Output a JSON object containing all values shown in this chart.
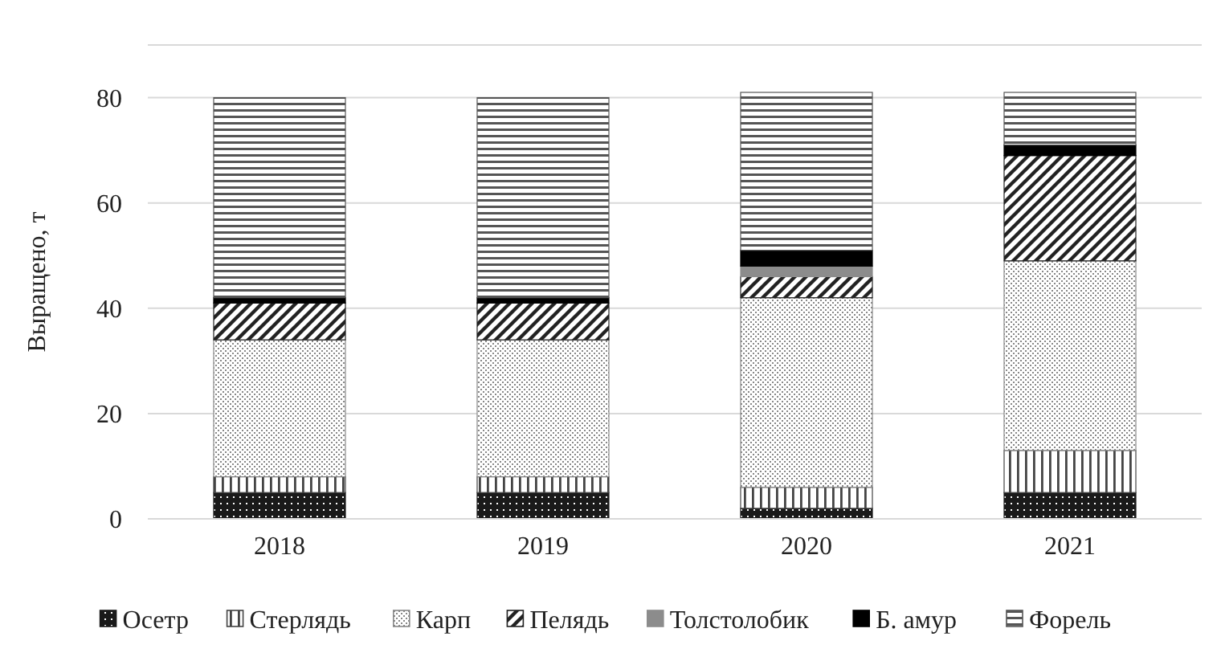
{
  "chart_data": {
    "type": "bar",
    "stacked": true,
    "ylabel": "Выращено, т",
    "categories": [
      "2018",
      "2019",
      "2020",
      "2021"
    ],
    "series": [
      {
        "name": "Осетр",
        "color": "#1a1a1a",
        "values": [
          5,
          5,
          2,
          5
        ]
      },
      {
        "name": "Стерлядь",
        "color": "#444444",
        "values": [
          3,
          3,
          4,
          8
        ]
      },
      {
        "name": "Карп",
        "color": "#888888",
        "values": [
          26,
          26,
          36,
          36
        ]
      },
      {
        "name": "Пелядь",
        "color": "#222222",
        "values": [
          7,
          7,
          4,
          20
        ]
      },
      {
        "name": "Толстолобик",
        "color": "#8c8c8c",
        "values": [
          0,
          0,
          2,
          0
        ]
      },
      {
        "name": "Б. амур",
        "color": "#000000",
        "values": [
          1,
          1,
          3,
          2
        ]
      },
      {
        "name": "Форель",
        "color": "#555555",
        "values": [
          38,
          38,
          30,
          10
        ]
      }
    ],
    "ylim": [
      0,
      90
    ],
    "yticks": [
      0,
      20,
      40,
      60,
      80,
      {
        "value": 90,
        "label": null
      }
    ],
    "grid": "y",
    "legend": "bottom"
  }
}
